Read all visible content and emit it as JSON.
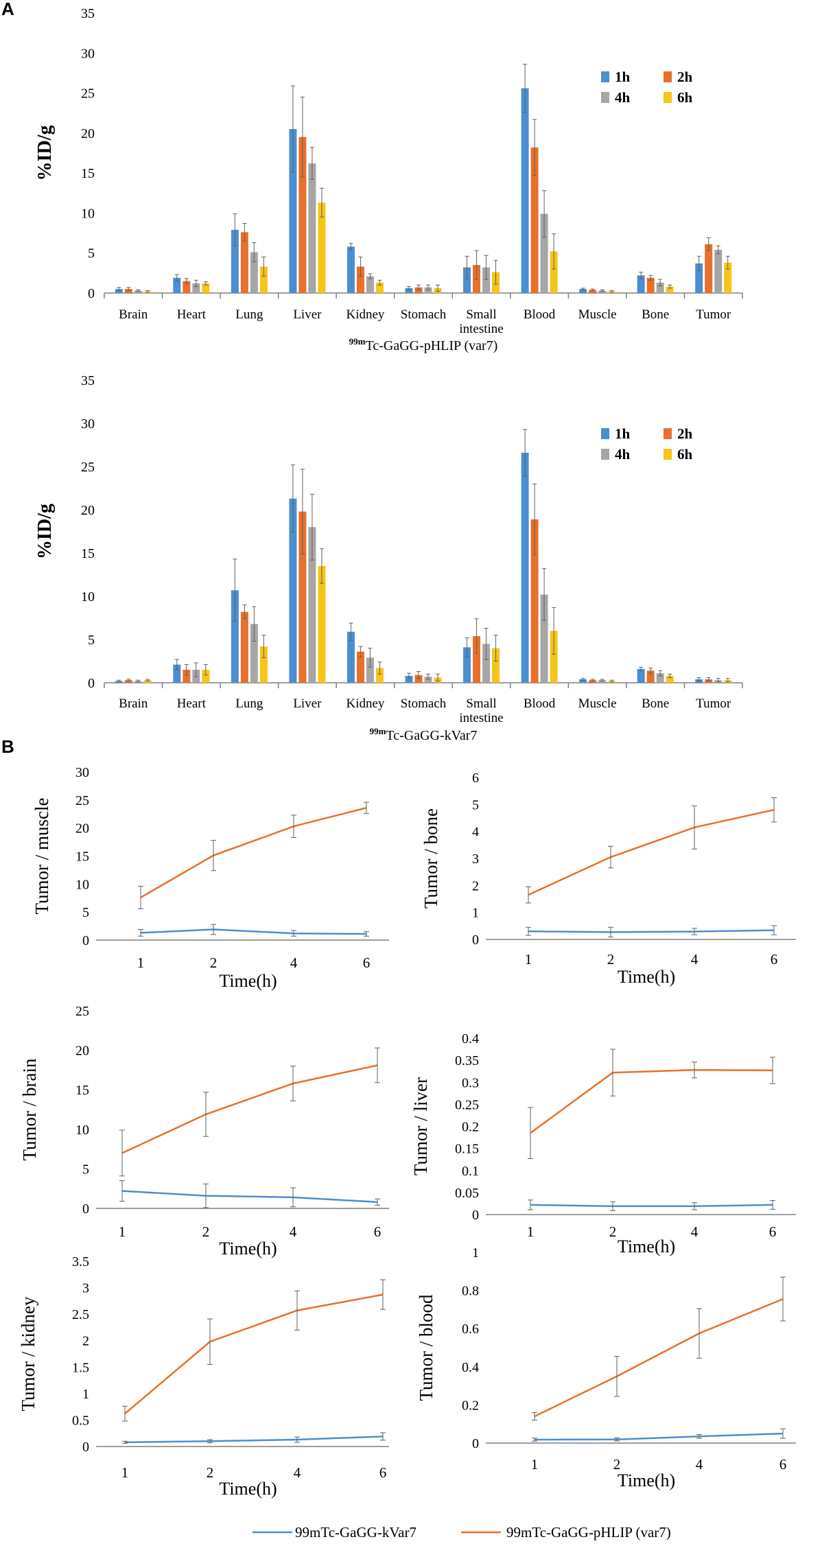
{
  "panel_labels": {
    "a": "A",
    "b": "B"
  },
  "colors": {
    "h1": "#4a8fd1",
    "h2": "#e8702a",
    "h4": "#a6a6a6",
    "h6": "#f5c518",
    "kvar7": "#4a8fd1",
    "phlip": "#e8702a",
    "axis": "#7f7f7f",
    "err": "#606060"
  },
  "chart_data": [
    {
      "id": "bar1",
      "type": "bar",
      "ylabel": "%ID/g",
      "ylim": [
        0,
        35
      ],
      "yticks": [
        0,
        5,
        10,
        15,
        20,
        25,
        30,
        35
      ],
      "categories": [
        "Brain",
        "Heart",
        "Lung",
        "Liver",
        "Kidney",
        "Stomach",
        "Small intestine",
        "Blood",
        "Muscle",
        "Bone",
        "Tumor"
      ],
      "xlabel": {
        "sup": "99m",
        "main": "Tc-GaGG-pHLIP (var7)"
      },
      "series": [
        {
          "name": "1h",
          "color": "#4a8fd1",
          "values": [
            0.5,
            1.9,
            7.9,
            20.5,
            5.8,
            0.6,
            3.2,
            25.6,
            0.5,
            2.2,
            3.7
          ],
          "errors": [
            0.2,
            0.4,
            2.0,
            5.4,
            0.4,
            0.2,
            1.4,
            3.0,
            0.1,
            0.4,
            0.9
          ]
        },
        {
          "name": "2h",
          "color": "#e8702a",
          "values": [
            0.5,
            1.5,
            7.6,
            19.5,
            3.3,
            0.7,
            3.5,
            18.2,
            0.4,
            1.9,
            6.1
          ],
          "errors": [
            0.2,
            0.3,
            1.1,
            5.0,
            1.2,
            0.3,
            1.8,
            3.5,
            0.1,
            0.3,
            0.8
          ]
        },
        {
          "name": "4h",
          "color": "#a6a6a6",
          "values": [
            0.3,
            1.2,
            5.1,
            16.2,
            2.1,
            0.7,
            3.2,
            9.9,
            0.3,
            1.3,
            5.4
          ],
          "errors": [
            0.1,
            0.4,
            1.2,
            2.0,
            0.3,
            0.3,
            1.5,
            2.9,
            0.1,
            0.4,
            0.5
          ]
        },
        {
          "name": "6h",
          "color": "#f5c518",
          "values": [
            0.2,
            1.2,
            3.3,
            11.3,
            1.3,
            0.6,
            2.6,
            5.2,
            0.2,
            0.8,
            3.8
          ],
          "errors": [
            0.1,
            0.2,
            1.2,
            1.8,
            0.3,
            0.4,
            1.5,
            2.2,
            0.1,
            0.2,
            0.8
          ]
        }
      ]
    },
    {
      "id": "bar2",
      "type": "bar",
      "ylabel": "%ID/g",
      "ylim": [
        0,
        35
      ],
      "yticks": [
        0,
        5,
        10,
        15,
        20,
        25,
        30,
        35
      ],
      "categories": [
        "Brain",
        "Heart",
        "Lung",
        "Liver",
        "Kidney",
        "Stomach",
        "Small intestine",
        "Blood",
        "Muscle",
        "Bone",
        "Tumor"
      ],
      "xlabel": {
        "sup": "99m",
        "main": "Tc-GaGG-kVar7"
      },
      "series": [
        {
          "name": "1h",
          "color": "#4a8fd1",
          "values": [
            0.2,
            2.1,
            10.7,
            21.3,
            5.9,
            0.8,
            4.1,
            26.6,
            0.4,
            1.6,
            0.4
          ],
          "errors": [
            0.1,
            0.6,
            3.6,
            3.9,
            1.0,
            0.3,
            1.1,
            2.7,
            0.1,
            0.2,
            0.2
          ]
        },
        {
          "name": "2h",
          "color": "#e8702a",
          "values": [
            0.3,
            1.5,
            8.2,
            19.8,
            3.6,
            0.9,
            5.4,
            18.9,
            0.3,
            1.4,
            0.4
          ],
          "errors": [
            0.1,
            0.6,
            0.8,
            4.9,
            0.6,
            0.4,
            2.0,
            4.1,
            0.1,
            0.3,
            0.2
          ]
        },
        {
          "name": "4h",
          "color": "#a6a6a6",
          "values": [
            0.2,
            1.5,
            6.8,
            18.0,
            2.9,
            0.7,
            4.5,
            10.2,
            0.3,
            1.1,
            0.3
          ],
          "errors": [
            0.1,
            0.8,
            2.0,
            3.8,
            1.1,
            0.3,
            1.8,
            3.0,
            0.1,
            0.3,
            0.2
          ]
        },
        {
          "name": "6h",
          "color": "#f5c518",
          "values": [
            0.3,
            1.5,
            4.2,
            13.5,
            1.7,
            0.6,
            4.0,
            6.0,
            0.2,
            0.8,
            0.3
          ],
          "errors": [
            0.1,
            0.6,
            1.3,
            2.0,
            0.7,
            0.4,
            1.5,
            2.7,
            0.1,
            0.2,
            0.2
          ]
        }
      ]
    },
    {
      "id": "line_muscle",
      "type": "line",
      "ylabel": "Tumor / muscle",
      "xlabel": "Time(h)",
      "categories": [
        "1",
        "2",
        "4",
        "6"
      ],
      "ylim": [
        0,
        30
      ],
      "yticks": [
        "0",
        "5",
        "10",
        "15",
        "20",
        "25",
        "30"
      ],
      "series": [
        {
          "name": "99mTc-GaGG-kVar7",
          "color": "#4a8fd1",
          "values": [
            1.3,
            1.9,
            1.2,
            1.1
          ],
          "errors": [
            0.6,
            0.9,
            0.5,
            0.4
          ]
        },
        {
          "name": "99mTc-GaGG-pHLIP (var7)",
          "color": "#e8702a",
          "values": [
            7.6,
            15.1,
            20.3,
            23.6
          ],
          "errors": [
            2.0,
            2.7,
            2.0,
            1.0
          ]
        }
      ]
    },
    {
      "id": "line_bone",
      "type": "line",
      "ylabel": "Tumor / bone",
      "xlabel": "Time(h)",
      "categories": [
        "1",
        "2",
        "4",
        "6"
      ],
      "ylim": [
        0,
        6
      ],
      "yticks": [
        "0",
        "1",
        "2",
        "3",
        "4",
        "5",
        "6"
      ],
      "series": [
        {
          "name": "99mTc-GaGG-kVar7",
          "color": "#4a8fd1",
          "values": [
            0.3,
            0.27,
            0.29,
            0.34
          ],
          "errors": [
            0.15,
            0.18,
            0.12,
            0.17
          ]
        },
        {
          "name": "99mTc-GaGG-pHLIP (var7)",
          "color": "#e8702a",
          "values": [
            1.65,
            3.05,
            4.15,
            4.8
          ],
          "errors": [
            0.3,
            0.4,
            0.8,
            0.45
          ]
        }
      ]
    },
    {
      "id": "line_brain",
      "type": "line",
      "ylabel": "Tumor / brain",
      "xlabel": "Time(h)",
      "categories": [
        "1",
        "2",
        "4",
        "6"
      ],
      "ylim": [
        0,
        25
      ],
      "yticks": [
        "0",
        "5",
        "10",
        "15",
        "20",
        "25"
      ],
      "series": [
        {
          "name": "99mTc-GaGG-kVar7",
          "color": "#4a8fd1",
          "values": [
            2.2,
            1.6,
            1.4,
            0.8
          ],
          "errors": [
            1.3,
            1.5,
            1.2,
            0.4
          ]
        },
        {
          "name": "99mTc-GaGG-pHLIP (var7)",
          "color": "#e8702a",
          "values": [
            7.0,
            11.9,
            15.8,
            18.1
          ],
          "errors": [
            2.9,
            2.8,
            2.2,
            2.2
          ]
        }
      ]
    },
    {
      "id": "line_liver",
      "type": "line",
      "ylabel": "Tumor / liver",
      "xlabel": "Time(h)",
      "categories": [
        "1",
        "2",
        "4",
        "6"
      ],
      "ylim": [
        0,
        0.4
      ],
      "yticks": [
        "0",
        "0.05",
        "0.1",
        "0.15",
        "0.2",
        "0.25",
        "0.3",
        "0.35",
        "0.4"
      ],
      "series": [
        {
          "name": "99mTc-GaGG-kVar7",
          "color": "#4a8fd1",
          "values": [
            0.022,
            0.019,
            0.019,
            0.022
          ],
          "errors": [
            0.011,
            0.01,
            0.008,
            0.01
          ]
        },
        {
          "name": "99mTc-GaGG-pHLIP (var7)",
          "color": "#e8702a",
          "values": [
            0.185,
            0.322,
            0.328,
            0.327
          ],
          "errors": [
            0.058,
            0.053,
            0.018,
            0.03
          ]
        }
      ]
    },
    {
      "id": "line_kidney",
      "type": "line",
      "ylabel": "Tumor / kidney",
      "xlabel": "Time(h)",
      "categories": [
        "1",
        "2",
        "4",
        "6"
      ],
      "ylim": [
        0,
        3.5
      ],
      "yticks": [
        "0",
        "0.5",
        "1",
        "1.5",
        "2",
        "2.5",
        "3",
        "3.5"
      ],
      "series": [
        {
          "name": "99mTc-GaGG-kVar7",
          "color": "#4a8fd1",
          "values": [
            0.08,
            0.1,
            0.13,
            0.19
          ],
          "errors": [
            0.02,
            0.03,
            0.05,
            0.07
          ]
        },
        {
          "name": "99mTc-GaGG-pHLIP (var7)",
          "color": "#e8702a",
          "values": [
            0.62,
            1.98,
            2.57,
            2.87
          ],
          "errors": [
            0.14,
            0.43,
            0.37,
            0.28
          ]
        }
      ]
    },
    {
      "id": "line_blood",
      "type": "line",
      "ylabel": "Tumor / blood",
      "xlabel": "Time(h)",
      "categories": [
        "1",
        "2",
        "4",
        "6"
      ],
      "ylim": [
        0,
        1
      ],
      "yticks": [
        "0",
        "0.2",
        "0.4",
        "0.6",
        "0.8",
        "1"
      ],
      "series": [
        {
          "name": "99mTc-GaGG-kVar7",
          "color": "#4a8fd1",
          "values": [
            0.018,
            0.019,
            0.035,
            0.05
          ],
          "errors": [
            0.008,
            0.008,
            0.01,
            0.025
          ]
        },
        {
          "name": "99mTc-GaGG-pHLIP (var7)",
          "color": "#e8702a",
          "values": [
            0.14,
            0.35,
            0.575,
            0.755
          ],
          "errors": [
            0.02,
            0.105,
            0.13,
            0.115
          ]
        }
      ]
    }
  ],
  "legend_bottom": [
    {
      "label": "99mTc-GaGG-kVar7",
      "color": "#4a8fd1"
    },
    {
      "label": "99mTc-GaGG-pHLIP (var7)",
      "color": "#e8702a"
    }
  ]
}
